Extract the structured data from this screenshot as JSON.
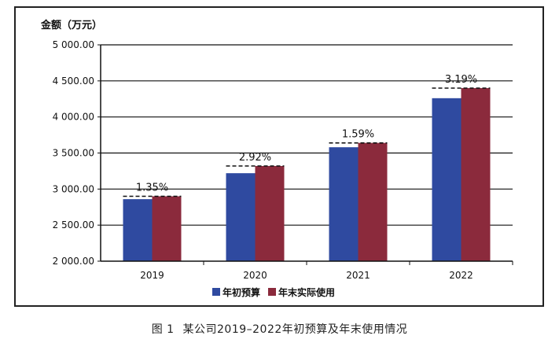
{
  "figure": {
    "caption_number": "图 1",
    "caption_text": "某公司2019–2022年初预算及年末使用情况"
  },
  "chart_data": {
    "type": "bar",
    "ylabel": "金额（万元）",
    "xlabel": "",
    "categories": [
      "2019",
      "2020",
      "2021",
      "2022"
    ],
    "ylim": [
      2000,
      5000
    ],
    "yticks": [
      "5 000.00",
      "4 500.00",
      "4 000.00",
      "3 500.00",
      "3 000.00",
      "2 500.00",
      "2 000.00"
    ],
    "ytick_values": [
      5000,
      4500,
      4000,
      3500,
      3000,
      2500,
      2000
    ],
    "series": [
      {
        "name": "年初预算",
        "values": [
          2860,
          3220,
          3580,
          4260
        ],
        "color": "#2f4aa0"
      },
      {
        "name": "年末实际使用",
        "values": [
          2900,
          3320,
          3640,
          4400
        ],
        "color": "#8b2a3c"
      }
    ],
    "annotations": [
      "1.35%",
      "2.92%",
      "1.59%",
      "3.19%"
    ],
    "grid": true,
    "legend_position": "bottom"
  }
}
